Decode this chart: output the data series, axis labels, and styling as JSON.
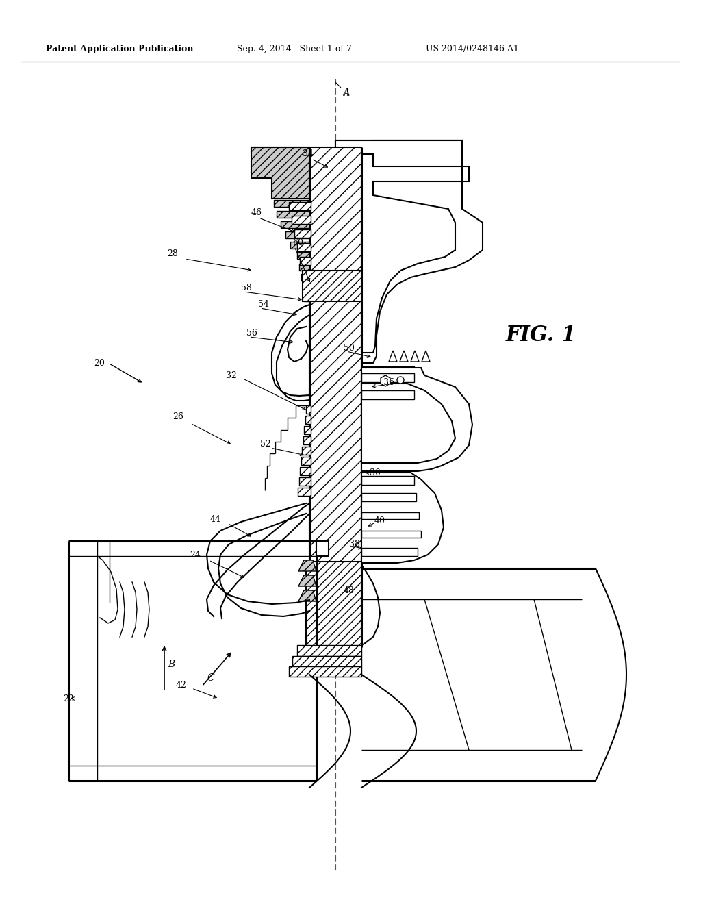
{
  "header_left": "Patent Application Publication",
  "header_center": "Sep. 4, 2014   Sheet 1 of 7",
  "header_right": "US 2014/0248146 A1",
  "fig_label": "FIG. 1",
  "background_color": "#ffffff"
}
